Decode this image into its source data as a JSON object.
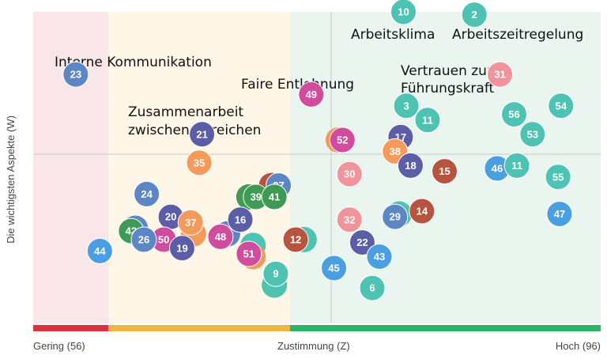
{
  "chart_data": {
    "type": "scatter",
    "ylabel": "Die wichtigsten Aspekte (W)",
    "x_tick_labels": {
      "left": "Gering (56)",
      "center": "Zustimmung (Z)",
      "right": "Hoch (96)"
    },
    "xlim": [
      56,
      96
    ],
    "ylim": [
      0,
      100
    ],
    "x_reference": 77,
    "y_reference": 50,
    "zones": [
      {
        "from": 56,
        "to": 61.3,
        "color": "#f9e6e8",
        "bar_color": "#d9343b"
      },
      {
        "from": 61.3,
        "to": 74.1,
        "color": "#fef6e7",
        "bar_color": "#f2b544"
      },
      {
        "from": 74.1,
        "to": 96,
        "color": "#e9f5ee",
        "bar_color": "#2fb36c"
      }
    ],
    "colors": {
      "teal": "#4ec3b3",
      "blue": "#4a9fe0",
      "steelblue": "#5c86c4",
      "indigo": "#5b5ea6",
      "green": "#3f9a55",
      "salmon": "#f0949b",
      "magenta": "#d04d9e",
      "orange": "#f49a5b",
      "brick": "#b5543f"
    },
    "points": [
      {
        "id": "10",
        "x": 82.1,
        "y": 100,
        "color": "teal"
      },
      {
        "id": "2",
        "x": 87.1,
        "y": 99,
        "color": "teal"
      },
      {
        "id": "23",
        "x": 59.0,
        "y": 78,
        "color": "steelblue"
      },
      {
        "id": "31",
        "x": 88.9,
        "y": 78,
        "color": "salmon"
      },
      {
        "id": "49",
        "x": 75.6,
        "y": 71,
        "color": "magenta"
      },
      {
        "id": "3",
        "x": 82.3,
        "y": 67,
        "color": "teal"
      },
      {
        "id": "56",
        "x": 89.9,
        "y": 64,
        "color": "teal"
      },
      {
        "id": "54",
        "x": 93.2,
        "y": 67,
        "color": "teal"
      },
      {
        "id": "11",
        "x": 83.8,
        "y": 62,
        "color": "teal"
      },
      {
        "id": "53",
        "x": 91.2,
        "y": 57,
        "color": "teal"
      },
      {
        "id": "21",
        "x": 67.9,
        "y": 57,
        "color": "indigo"
      },
      {
        "id": "17",
        "x": 81.9,
        "y": 56,
        "color": "indigo"
      },
      {
        "id": "52",
        "x": 77.8,
        "y": 55,
        "color": "magenta"
      },
      {
        "id": "38",
        "x": 81.5,
        "y": 51,
        "color": "orange"
      },
      {
        "id": "35",
        "x": 67.7,
        "y": 47,
        "color": "orange"
      },
      {
        "id": "18",
        "x": 82.6,
        "y": 46,
        "color": "indigo"
      },
      {
        "id": "15",
        "x": 85.0,
        "y": 44,
        "color": "brick"
      },
      {
        "id": "46",
        "x": 88.7,
        "y": 45,
        "color": "blue"
      },
      {
        "id": "11",
        "x": 90.1,
        "y": 46,
        "color": "teal"
      },
      {
        "id": "30",
        "x": 78.3,
        "y": 43,
        "color": "salmon"
      },
      {
        "id": "55",
        "x": 93.0,
        "y": 42,
        "color": "teal"
      },
      {
        "id": "27",
        "x": 73.3,
        "y": 39,
        "color": "steelblue"
      },
      {
        "id": "39",
        "x": 71.7,
        "y": 35,
        "color": "green"
      },
      {
        "id": "41",
        "x": 73.0,
        "y": 35,
        "color": "green"
      },
      {
        "id": "24",
        "x": 64.0,
        "y": 36,
        "color": "steelblue"
      },
      {
        "id": "14",
        "x": 83.4,
        "y": 30,
        "color": "brick"
      },
      {
        "id": "47",
        "x": 93.1,
        "y": 29,
        "color": "blue"
      },
      {
        "id": "29",
        "x": 81.5,
        "y": 28,
        "color": "steelblue"
      },
      {
        "id": "20",
        "x": 65.7,
        "y": 28,
        "color": "indigo"
      },
      {
        "id": "16",
        "x": 70.6,
        "y": 27,
        "color": "indigo"
      },
      {
        "id": "32",
        "x": 78.3,
        "y": 27,
        "color": "salmon"
      },
      {
        "id": "37",
        "x": 67.1,
        "y": 26,
        "color": "orange"
      },
      {
        "id": "42",
        "x": 62.9,
        "y": 23,
        "color": "green"
      },
      {
        "id": "48",
        "x": 69.2,
        "y": 21,
        "color": "magenta"
      },
      {
        "id": "50",
        "x": 65.2,
        "y": 20,
        "color": "magenta"
      },
      {
        "id": "26",
        "x": 63.8,
        "y": 20,
        "color": "steelblue"
      },
      {
        "id": "12",
        "x": 74.5,
        "y": 20,
        "color": "brick"
      },
      {
        "id": "22",
        "x": 79.2,
        "y": 19,
        "color": "indigo"
      },
      {
        "id": "19",
        "x": 66.5,
        "y": 17,
        "color": "indigo"
      },
      {
        "id": "44",
        "x": 60.7,
        "y": 16,
        "color": "blue"
      },
      {
        "id": "51",
        "x": 71.2,
        "y": 15,
        "color": "magenta"
      },
      {
        "id": "43",
        "x": 80.4,
        "y": 14,
        "color": "blue"
      },
      {
        "id": "45",
        "x": 77.2,
        "y": 10,
        "color": "blue"
      },
      {
        "id": "9",
        "x": 73.1,
        "y": 8,
        "color": "teal"
      },
      {
        "id": "6",
        "x": 79.9,
        "y": 3,
        "color": "teal"
      }
    ],
    "hidden_points": [
      {
        "x": 63.2,
        "y": 24,
        "color": "steelblue"
      },
      {
        "x": 72.8,
        "y": 39,
        "color": "brick"
      },
      {
        "x": 71.2,
        "y": 35,
        "color": "green"
      },
      {
        "x": 69.7,
        "y": 22,
        "color": "steelblue"
      },
      {
        "x": 67.3,
        "y": 22,
        "color": "orange"
      },
      {
        "x": 71.5,
        "y": 18,
        "color": "teal"
      },
      {
        "x": 71.5,
        "y": 14,
        "color": "orange"
      },
      {
        "x": 75.1,
        "y": 20,
        "color": "teal"
      },
      {
        "x": 77.5,
        "y": 55,
        "color": "orange"
      },
      {
        "x": 73.0,
        "y": 4,
        "color": "teal"
      },
      {
        "x": 81.8,
        "y": 29,
        "color": "teal"
      }
    ],
    "annotations": [
      {
        "key": "arbeitsklima",
        "lines": [
          "Arbeitsklima"
        ]
      },
      {
        "key": "arbeitszeit",
        "lines": [
          "Arbeitszeitregelung"
        ]
      },
      {
        "key": "interne",
        "lines": [
          "Interne Kommunikation"
        ]
      },
      {
        "key": "faire",
        "lines": [
          "Faire Entlohnung"
        ]
      },
      {
        "key": "vertrauen",
        "lines": [
          "Vertrauen zur",
          "Führungskraft"
        ]
      },
      {
        "key": "zusammen",
        "lines": [
          "Zusammenarbeit",
          "zwischen Bereichen"
        ]
      }
    ]
  }
}
